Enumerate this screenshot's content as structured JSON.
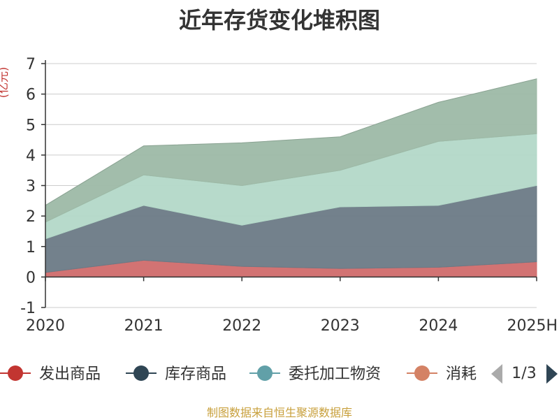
{
  "chart_data": {
    "type": "area",
    "stacked": true,
    "title": "近年存货变化堆积图",
    "ylabel": "(亿元)",
    "categories": [
      "2020",
      "2021",
      "2022",
      "2023",
      "2024",
      "2025H"
    ],
    "ylim": [
      -1,
      7
    ],
    "yticks": [
      -1,
      0,
      1,
      2,
      3,
      4,
      5,
      6,
      7
    ],
    "grid": true,
    "series": [
      {
        "name": "发出商品",
        "color": "#d06b6b",
        "values": [
          0.15,
          0.55,
          0.35,
          0.28,
          0.32,
          0.5
        ]
      },
      {
        "name": "库存商品",
        "color": "#6b7a86",
        "values": [
          1.1,
          1.8,
          1.35,
          2.02,
          2.03,
          2.5
        ]
      },
      {
        "name": "委托加工物资",
        "color": "#b3d8c8",
        "values": [
          0.55,
          1.0,
          1.3,
          1.2,
          2.1,
          1.7
        ]
      },
      {
        "name": "消耗性生物资产",
        "color": "#9db9a6",
        "values": [
          0.55,
          0.95,
          1.4,
          1.1,
          1.28,
          1.8
        ]
      }
    ],
    "legend": {
      "position": "bottom",
      "items": [
        {
          "name": "发出商品",
          "color": "#c23531"
        },
        {
          "name": "库存商品",
          "color": "#2f4554"
        },
        {
          "name": "委托加工物资",
          "color": "#61a0a8"
        },
        {
          "name": "消耗",
          "color": "#d48265"
        }
      ],
      "page": "1/3"
    }
  },
  "footer": "制图数据来自恒生聚源数据库"
}
